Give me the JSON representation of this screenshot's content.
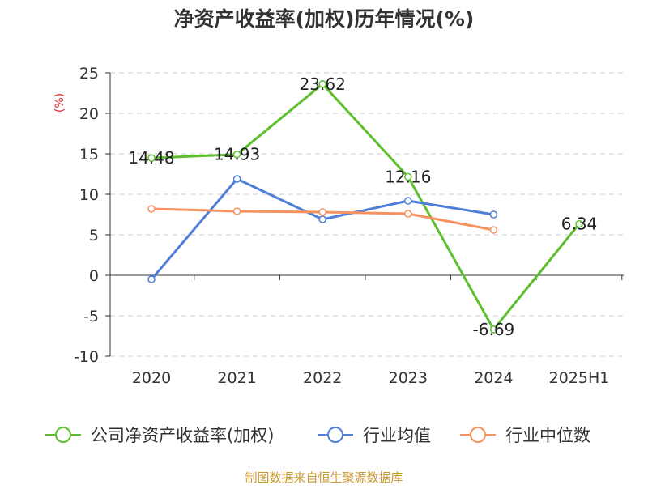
{
  "chart_data": {
    "type": "line",
    "title": "净资产收益率(加权)历年情况(%)",
    "ylabel": "(%)",
    "categories": [
      "2020",
      "2021",
      "2022",
      "2023",
      "2024",
      "2025H1"
    ],
    "ylim": [
      -10,
      25
    ],
    "yticks": [
      25,
      20,
      15,
      10,
      5,
      0,
      -5,
      -10
    ],
    "grid": "horizontal-dashed",
    "legend_position": "bottom",
    "series": [
      {
        "name": "公司净资产收益率(加权)",
        "color": "#5dbf2c",
        "values": [
          14.48,
          14.93,
          23.62,
          12.16,
          -6.69,
          6.34
        ],
        "labels": [
          "14.48",
          "14.93",
          "23.62",
          "12.16",
          "-6.69",
          "6.34"
        ]
      },
      {
        "name": "行业均值",
        "color": "#4f7fd8",
        "values": [
          -0.5,
          11.9,
          6.9,
          9.2,
          7.5,
          null
        ]
      },
      {
        "name": "行业中位数",
        "color": "#f5925e",
        "values": [
          8.2,
          7.9,
          7.8,
          7.6,
          5.6,
          null
        ]
      }
    ],
    "ylabel_color": "#d9262c",
    "source": "制图数据来自恒生聚源数据库",
    "source_color": "#c8962e"
  }
}
